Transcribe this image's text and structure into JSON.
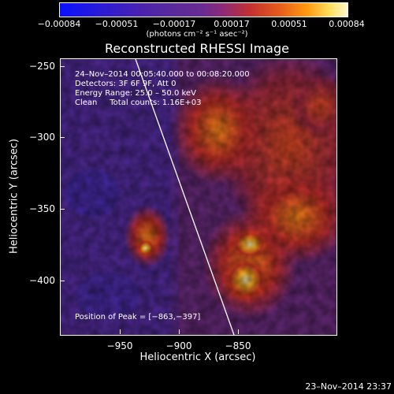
{
  "colorbar": {
    "ticks": [
      "−0.00084",
      "−0.00051",
      "−0.00017",
      "0.00017",
      "0.00051",
      "0.00084"
    ],
    "units": "(photons cm⁻² s⁻¹ asec⁻²)"
  },
  "title": "Reconstructed RHESSI Image",
  "info": {
    "time_range": "24–Nov–2014 00:05:40.000 to 00:08:20.000",
    "detectors": "Detectors: 3F 6F 9F, Att 0",
    "energy": "Energy Range: 25.0 – 50.0 keV",
    "clean": "Clean     Total counts: 1.16E+03",
    "peak": "Position of Peak = [−863,−397]"
  },
  "axes": {
    "xlabel": "Heliocentric X (arcsec)",
    "ylabel": "Heliocentric Y (arcsec)",
    "xticks": [
      "−950",
      "−900",
      "−850"
    ],
    "yticks": [
      "−250",
      "−300",
      "−350",
      "−400"
    ]
  },
  "footer": "23–Nov–2014 23:37"
}
